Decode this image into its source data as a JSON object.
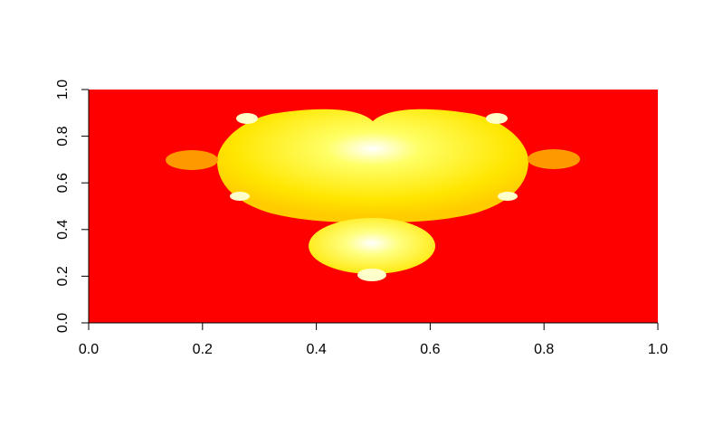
{
  "chart_data": {
    "type": "heatmap",
    "title": "",
    "xlabel": "",
    "ylabel": "",
    "xlim": [
      0,
      1
    ],
    "ylim": [
      0,
      1
    ],
    "x_ticks": [
      "0.0",
      "0.2",
      "0.4",
      "0.6",
      "0.8",
      "1.0"
    ],
    "y_ticks": [
      "0.0",
      "0.2",
      "0.4",
      "0.6",
      "0.8",
      "1.0"
    ],
    "grid": false,
    "legend": "none",
    "colors": {
      "background_fill": "#ff0000",
      "inner_fill": "#ffff00",
      "highlight_fill": "#ffffff",
      "bulb_fill": "#ff9900",
      "axis": "#000000"
    }
  }
}
